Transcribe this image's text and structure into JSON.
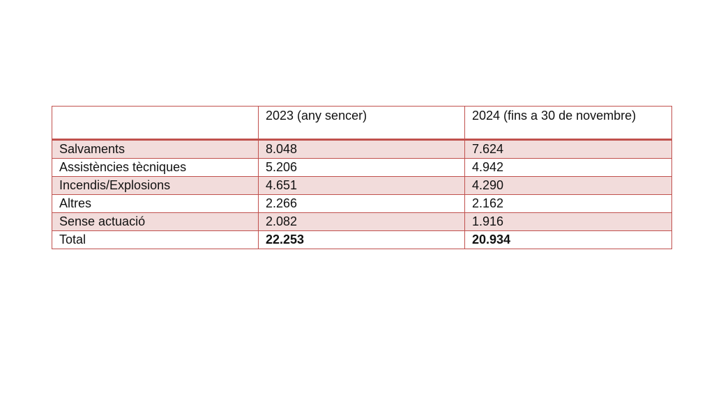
{
  "table": {
    "columns": [
      "2023 (any sencer)",
      "2024 (fins a 30 de novembre)"
    ],
    "rows": [
      [
        "Salvaments",
        "8.048",
        "7.624"
      ],
      [
        "Assistències tècniques",
        "5.206",
        "4.942"
      ],
      [
        "Incendis/Explosions",
        "4.651",
        "4.290"
      ],
      [
        "Altres",
        "2.266",
        "2.162"
      ],
      [
        "Sense actuació",
        "2.082",
        "1.916"
      ],
      [
        "Total",
        "22.253",
        "20.934"
      ]
    ]
  }
}
